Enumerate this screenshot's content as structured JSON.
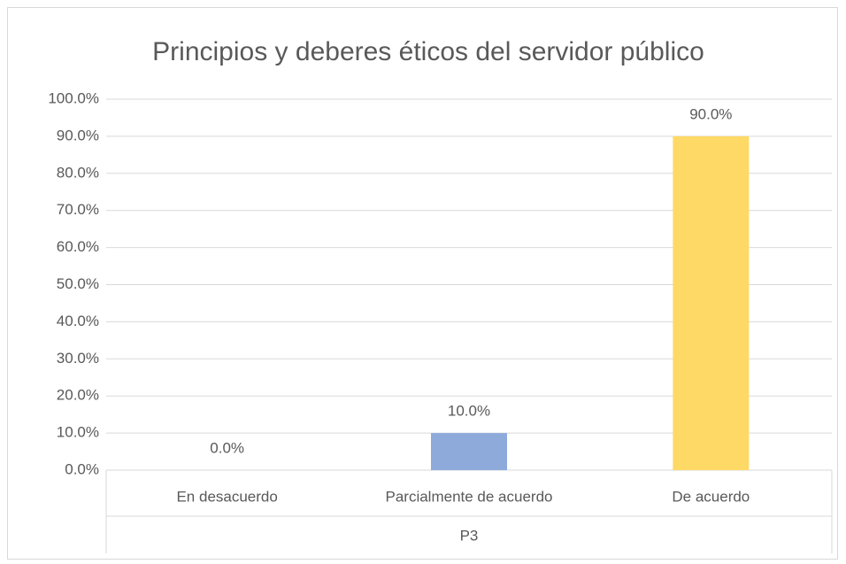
{
  "chart_data": {
    "type": "bar",
    "title": "Principios y deberes éticos del servidor público",
    "categories": [
      "En desacuerdo",
      "Parcialmente de acuerdo",
      "De acuerdo"
    ],
    "values": [
      0,
      10,
      90
    ],
    "value_labels": [
      "0.0%",
      "10.0%",
      "90.0%"
    ],
    "colors": [
      "#f4b183",
      "#8eaadb",
      "#ffd966"
    ],
    "x_group_label": "P3",
    "ylim": [
      0,
      100
    ],
    "yticks": [
      {
        "value": 0,
        "label": "0.0%"
      },
      {
        "value": 10,
        "label": "10.0%"
      },
      {
        "value": 20,
        "label": "20.0%"
      },
      {
        "value": 30,
        "label": "30.0%"
      },
      {
        "value": 40,
        "label": "40.0%"
      },
      {
        "value": 50,
        "label": "50.0%"
      },
      {
        "value": 60,
        "label": "60.0%"
      },
      {
        "value": 70,
        "label": "70.0%"
      },
      {
        "value": 80,
        "label": "80.0%"
      },
      {
        "value": 90,
        "label": "90.0%"
      },
      {
        "value": 100,
        "label": "100.0%"
      }
    ],
    "grid": true
  }
}
